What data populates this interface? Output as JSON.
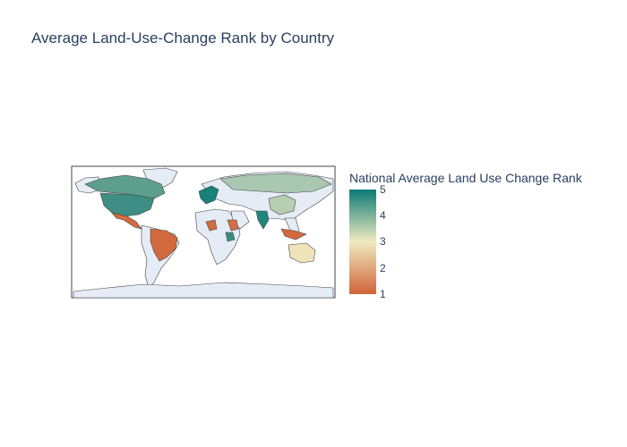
{
  "title": "Average Land-Use-Change Rank by Country",
  "colorbar": {
    "title": "National Average Land Use Change Rank",
    "ticks": [
      "5",
      "4",
      "3",
      "2",
      "1"
    ],
    "colors": {
      "low": "#d0643a",
      "mid": "#f1eac0",
      "high": "#0b7a75"
    }
  },
  "map_colors": {
    "land": "#e5ecf6",
    "ocean": "#ffffff",
    "border": "#444444"
  },
  "regions": [
    {
      "name": "Canada",
      "rank": 4.0
    },
    {
      "name": "United States",
      "rank": 4.3
    },
    {
      "name": "Mexico",
      "rank": 1.2
    },
    {
      "name": "Brazil",
      "rank": 1.3
    },
    {
      "name": "Western Europe",
      "rank": 4.7
    },
    {
      "name": "India",
      "rank": 4.6
    },
    {
      "name": "China",
      "rank": 3.7
    },
    {
      "name": "Russia",
      "rank": 3.8
    },
    {
      "name": "Australia",
      "rank": 2.8
    },
    {
      "name": "Indonesia",
      "rank": 1.2
    },
    {
      "name": "Nigeria",
      "rank": 1.4
    },
    {
      "name": "Ethiopia",
      "rank": 1.5
    },
    {
      "name": "Tanzania",
      "rank": 4.3
    }
  ]
}
